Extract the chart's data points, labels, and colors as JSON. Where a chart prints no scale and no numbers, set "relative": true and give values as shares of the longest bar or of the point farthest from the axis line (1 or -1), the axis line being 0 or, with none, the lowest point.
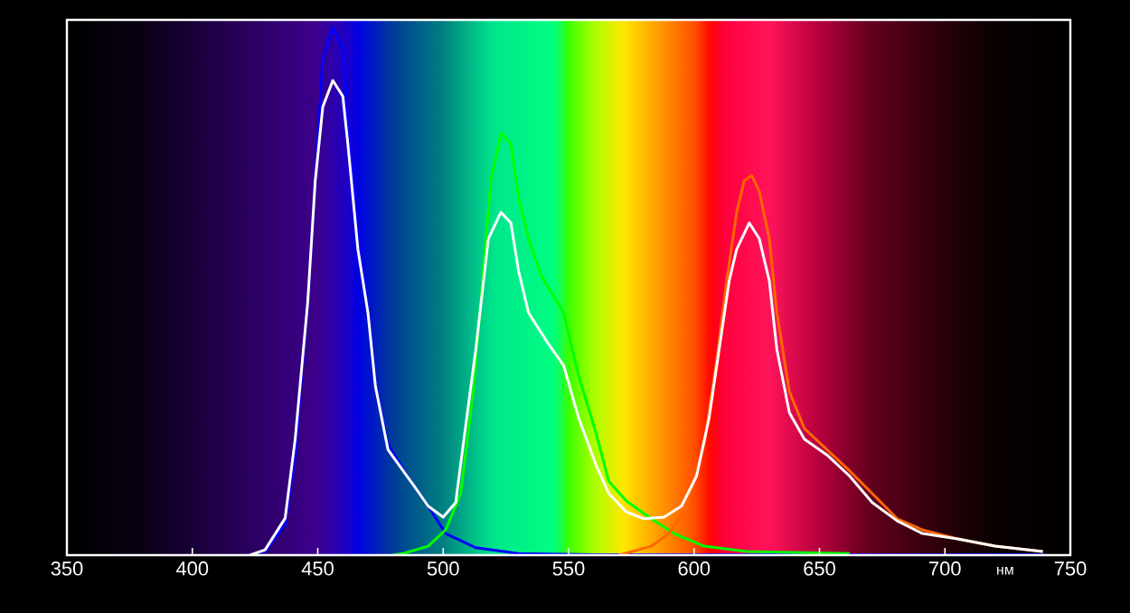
{
  "chart_data": {
    "type": "line",
    "xlabel": "нм",
    "relative": true,
    "xlim": [
      350,
      750
    ],
    "xticks": [
      350,
      400,
      450,
      500,
      550,
      600,
      650,
      700,
      750
    ],
    "grid": false,
    "series": [
      {
        "color": "#0000ff",
        "x": [
          423,
          429,
          437,
          441,
          446,
          449,
          452,
          456,
          460,
          462,
          466,
          470,
          473,
          478,
          487,
          494,
          501,
          513,
          530,
          560,
          740
        ],
        "values": [
          0,
          0.007,
          0.058,
          0.19,
          0.48,
          0.71,
          0.94,
          1.0,
          0.96,
          0.82,
          0.6,
          0.46,
          0.32,
          0.21,
          0.14,
          0.093,
          0.041,
          0.014,
          0.003,
          0.001,
          0.001
        ]
      },
      {
        "color": "#00ff00",
        "x": [
          480,
          484,
          494,
          501,
          507,
          512,
          516,
          519,
          523,
          527,
          530,
          534,
          539,
          548,
          554,
          561,
          566,
          573,
          583,
          592,
          604,
          621,
          662
        ],
        "values": [
          0,
          0.003,
          0.017,
          0.048,
          0.117,
          0.31,
          0.54,
          0.71,
          0.8,
          0.78,
          0.68,
          0.6,
          0.53,
          0.46,
          0.34,
          0.23,
          0.14,
          0.103,
          0.069,
          0.041,
          0.017,
          0.007,
          0.003
        ]
      },
      {
        "color": "#ff6600",
        "x": [
          570,
          583,
          590,
          597,
          604,
          609,
          613,
          617,
          620,
          623,
          626,
          630,
          633,
          638,
          644,
          653,
          662,
          671,
          681,
          691,
          705,
          720,
          739
        ],
        "values": [
          0,
          0.017,
          0.041,
          0.093,
          0.21,
          0.37,
          0.52,
          0.65,
          0.71,
          0.72,
          0.69,
          0.6,
          0.46,
          0.31,
          0.24,
          0.2,
          0.16,
          0.117,
          0.069,
          0.048,
          0.031,
          0.017,
          0.007
        ]
      },
      {
        "color": "#ffffff",
        "x": [
          423,
          429,
          437,
          441,
          446,
          449,
          452,
          456,
          460,
          462,
          466,
          470,
          473,
          478,
          489,
          494,
          500,
          505,
          508,
          513,
          518,
          523,
          527,
          530,
          534,
          542,
          548,
          554,
          561,
          566,
          573,
          580,
          588,
          595,
          601,
          606,
          610,
          614,
          617,
          622,
          626,
          630,
          633,
          638,
          644,
          653,
          662,
          671,
          681,
          691,
          705,
          720,
          739
        ],
        "values": [
          0,
          0.01,
          0.07,
          0.22,
          0.48,
          0.71,
          0.85,
          0.9,
          0.87,
          0.78,
          0.58,
          0.46,
          0.32,
          0.2,
          0.127,
          0.093,
          0.072,
          0.1,
          0.21,
          0.39,
          0.6,
          0.65,
          0.63,
          0.54,
          0.46,
          0.4,
          0.36,
          0.26,
          0.17,
          0.117,
          0.082,
          0.069,
          0.072,
          0.093,
          0.15,
          0.26,
          0.39,
          0.52,
          0.58,
          0.63,
          0.6,
          0.52,
          0.39,
          0.27,
          0.22,
          0.19,
          0.15,
          0.1,
          0.065,
          0.041,
          0.031,
          0.017,
          0.007
        ]
      }
    ]
  }
}
